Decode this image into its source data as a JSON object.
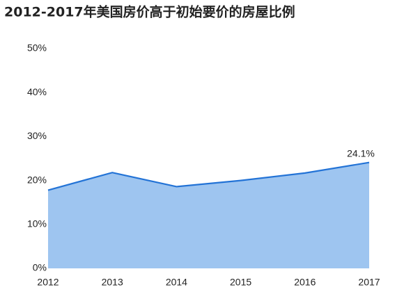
{
  "chart_data": {
    "type": "area",
    "title": "2012-2017年美国房价高于初始要价的房屋比例",
    "categories": [
      "2012",
      "2013",
      "2014",
      "2015",
      "2016",
      "2017"
    ],
    "values": [
      17.8,
      21.8,
      18.6,
      20.0,
      21.7,
      24.1
    ],
    "value_labels": [
      null,
      null,
      null,
      null,
      null,
      "24.1%"
    ],
    "color": "#2373d6",
    "fill": "#9ec5f0",
    "ylim": [
      0,
      50
    ],
    "yticks": [
      {
        "value": 0,
        "label": "0%"
      },
      {
        "value": 10,
        "label": "10%"
      },
      {
        "value": 20,
        "label": "20%"
      },
      {
        "value": 30,
        "label": "30%"
      },
      {
        "value": 40,
        "label": "40%"
      },
      {
        "value": 50,
        "label": "50%"
      }
    ],
    "grid": false
  }
}
